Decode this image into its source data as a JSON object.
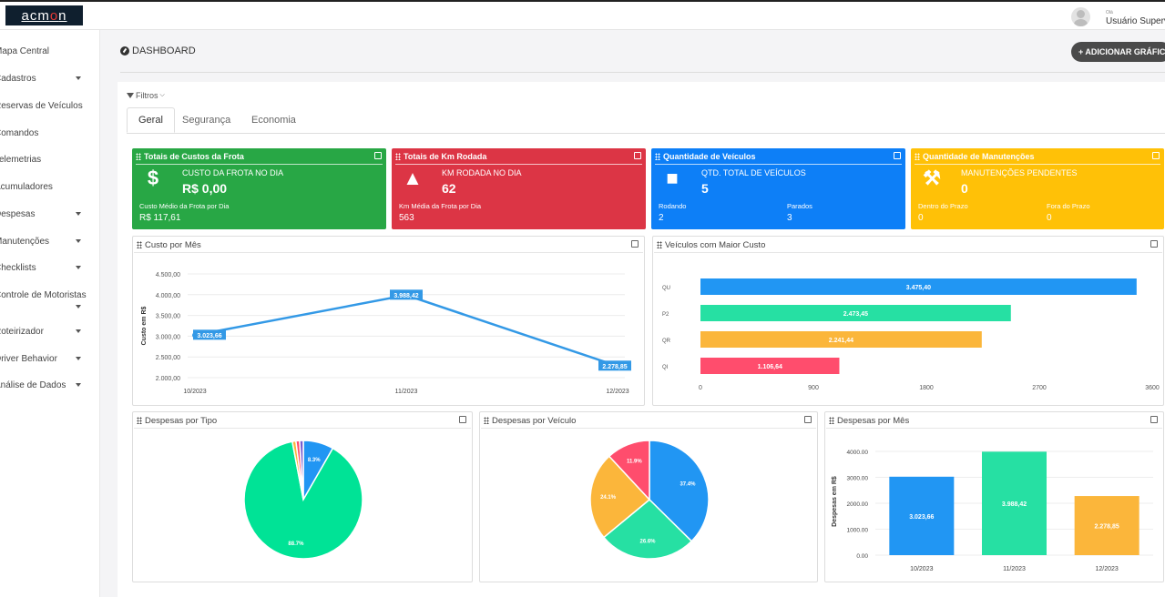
{
  "app": {
    "logo_text": "acmon",
    "user_small": "Olá",
    "user_name": "Usuário Supervisor"
  },
  "sidebar": {
    "items": [
      {
        "label": "Mapa Central",
        "caret": false
      },
      {
        "label": "Cadastros",
        "caret": true
      },
      {
        "label": "Reservas de Veículos",
        "caret": false
      },
      {
        "label": "Comandos",
        "caret": false
      },
      {
        "label": "Telemetrias",
        "caret": false
      },
      {
        "label": "Acumuladores",
        "caret": false
      },
      {
        "label": "Despesas",
        "caret": true
      },
      {
        "label": "Manutenções",
        "caret": true
      },
      {
        "label": "Checklists",
        "caret": true
      },
      {
        "label": "Controle de Motoristas",
        "caret": true
      },
      {
        "label": "Roteirizador",
        "caret": true
      },
      {
        "label": "Driver Behavior",
        "caret": true
      },
      {
        "label": "Análise de Dados",
        "caret": true
      }
    ]
  },
  "header": {
    "title": "DASHBOARD",
    "add_button": "+ ADICIONAR GRÁFICO"
  },
  "filters": {
    "label": "Filtros"
  },
  "tabs": [
    "Geral",
    "Segurança",
    "Economia"
  ],
  "cards": [
    {
      "title": "Totais de Custos da Frota",
      "color": "#28a745",
      "icon": "dollar-icon",
      "label": "CUSTO DA FROTA NO DIA",
      "value": "R$ 0,00",
      "sub1_label": "Custo Médio da Frota por Dia",
      "sub1_value": "R$ 117,61"
    },
    {
      "title": "Totais de Km Rodada",
      "color": "#dc3545",
      "icon": "road-icon",
      "label": "KM RODADA NO DIA",
      "value": "62",
      "sub1_label": "Km Média da Frota por Dia",
      "sub1_value": "563"
    },
    {
      "title": "Quantidade de Veículos",
      "color": "#0d7ff7",
      "icon": "car-icon",
      "label": "QTD. TOTAL DE VEÍCULOS",
      "value": "5",
      "sub1_label": "Rodando",
      "sub1_value": "2",
      "sub2_label": "Parados",
      "sub2_value": "3"
    },
    {
      "title": "Quantidade de Manutenções",
      "color": "#ffc107",
      "icon": "wrench-icon",
      "label": "MANUTENÇÕES PENDENTES",
      "value": "0",
      "sub1_label": "Dentro do Prazo",
      "sub1_value": "0",
      "sub2_label": "Fora do Prazo",
      "sub2_value": "0"
    }
  ],
  "panels": {
    "custo_mes": "Custo por Mês",
    "veiculos_custo": "Veículos com Maior Custo",
    "despesas_tipo": "Despesas por Tipo",
    "despesas_veiculo": "Despesas por Veículo",
    "despesas_mes": "Despesas por Mês"
  },
  "chart_data": [
    {
      "type": "line",
      "title": "Custo por Mês",
      "ylabel": "Custo em R$",
      "categories": [
        "10/2023",
        "11/2023",
        "12/2023"
      ],
      "values": [
        3023.66,
        3988.42,
        2278.85
      ],
      "value_labels": [
        "3.023,66",
        "3.988,42",
        "2.278,85"
      ],
      "yticks": [
        "2.000,00",
        "2.500,00",
        "3.000,00",
        "3.500,00",
        "4.000,00",
        "4.500,00"
      ],
      "ylim": [
        2000,
        4500
      ],
      "color": "#3399e6"
    },
    {
      "type": "bar",
      "orientation": "horizontal",
      "title": "Veículos com Maior Custo",
      "categories": [
        "QU",
        "P2",
        "QR",
        "QI"
      ],
      "values": [
        3475.4,
        2473.45,
        2241.44,
        1106.64
      ],
      "value_labels": [
        "3.475,40",
        "2.473,45",
        "2.241,44",
        "1.106,64"
      ],
      "colors": [
        "#2196f3",
        "#26e0a3",
        "#fbb63b",
        "#ff4d6d"
      ],
      "xticks": [
        "0",
        "900",
        "1800",
        "2700",
        "3600"
      ],
      "xlim": [
        0,
        3600
      ]
    },
    {
      "type": "pie",
      "title": "Despesas por Tipo",
      "values": [
        8.3,
        88.7,
        1.0,
        1.0,
        1.0
      ],
      "labels": [
        "8.3%",
        "88.7%",
        "",
        "",
        ""
      ],
      "colors": [
        "#2196f3",
        "#00e396",
        "#fbb63b",
        "#ff4d6d",
        "#775dd0"
      ]
    },
    {
      "type": "pie",
      "title": "Despesas por Veículo",
      "values": [
        37.4,
        26.6,
        24.1,
        11.9
      ],
      "labels": [
        "37.4%",
        "26.6%",
        "24.1%",
        "11.9%"
      ],
      "colors": [
        "#2196f3",
        "#26e0a3",
        "#fbb63b",
        "#ff4d6d"
      ]
    },
    {
      "type": "bar",
      "title": "Despesas por Mês",
      "ylabel": "Despesas em R$",
      "categories": [
        "10/2023",
        "11/2023",
        "12/2023"
      ],
      "values": [
        3023.66,
        3988.42,
        2278.85
      ],
      "value_labels": [
        "3.023,66",
        "3.988,42",
        "2.278,85"
      ],
      "colors": [
        "#2196f3",
        "#26e0a3",
        "#fbb63b"
      ],
      "yticks": [
        "0.00",
        "1000.00",
        "2000.00",
        "3000.00",
        "4000.00"
      ],
      "ylim": [
        0,
        4000
      ]
    }
  ]
}
